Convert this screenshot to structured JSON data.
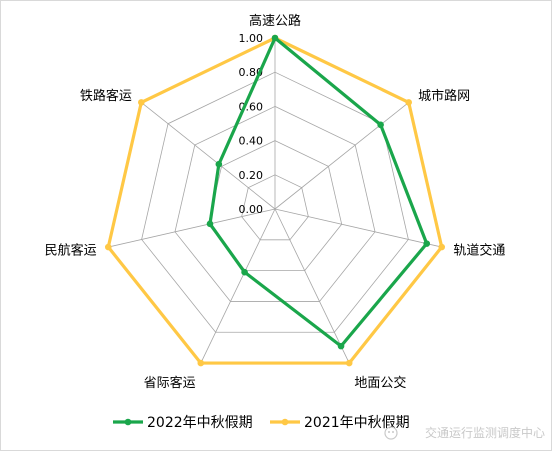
{
  "chart_data": {
    "type": "radar",
    "axes": [
      "高速公路",
      "城市路网",
      "轨道交通",
      "地面公交",
      "省际客运",
      "民航客运",
      "铁路客运"
    ],
    "rlim": [
      0,
      1
    ],
    "rticks": [
      "0.00",
      "0.20",
      "0.40",
      "0.60",
      "0.80",
      "1.00"
    ],
    "grid": true,
    "legend_position": "bottom",
    "series": [
      {
        "name": "2022年中秋假期",
        "color": "#1aa64b",
        "values": [
          1.0,
          0.79,
          0.91,
          0.89,
          0.41,
          0.39,
          0.42
        ]
      },
      {
        "name": "2021年中秋假期",
        "color": "#ffc845",
        "values": [
          1.0,
          1.0,
          1.0,
          1.0,
          1.0,
          1.0,
          1.0
        ]
      }
    ]
  },
  "watermark": "交通运行监测调度中心"
}
